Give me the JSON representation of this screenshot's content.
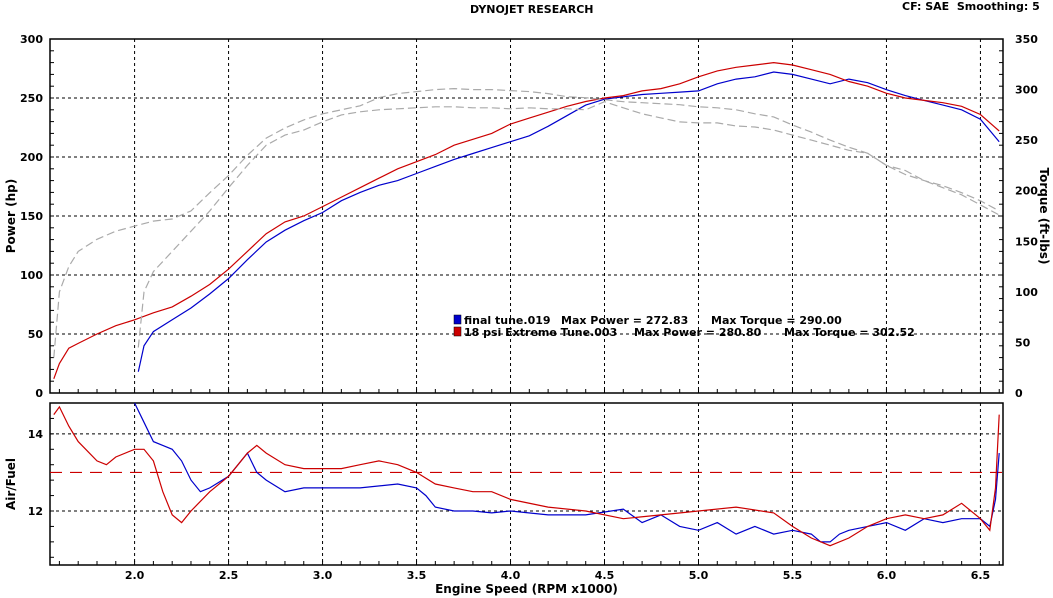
{
  "header": {
    "title": "DYNOJET RESEARCH",
    "correction": "CF: SAE  Smoothing: 5"
  },
  "chart_data": [
    {
      "type": "line",
      "panel": "power-torque",
      "xlabel": "Engine Speed (RPM x1000)",
      "ylabel_left": "Power (hp)",
      "ylabel_right": "Torque (ft-lbs)",
      "xlim": [
        1.55,
        6.62
      ],
      "ylim_left": [
        0,
        300
      ],
      "ylim_right": [
        0,
        350
      ],
      "x_ticks": [
        "2.0",
        "2.5",
        "3.0",
        "3.5",
        "4.0",
        "4.5",
        "5.0",
        "5.5",
        "6.0",
        "6.5"
      ],
      "y_ticks_left": [
        "0",
        "50",
        "100",
        "150",
        "200",
        "250",
        "300"
      ],
      "y_ticks_right": [
        "0",
        "50",
        "100",
        "150",
        "200",
        "250",
        "300",
        "350"
      ],
      "grid": true,
      "legend": [
        {
          "run": "final tune.019",
          "max_power_label": "Max Power = 272.83",
          "max_torque_label": "Max Torque = 290.00",
          "color": "#0000cc"
        },
        {
          "run": "18 psi Extreme Tune.003",
          "max_power_label": "Max Power = 280.80",
          "max_torque_label": "Max Torque = 302.52",
          "color": "#cc0000"
        }
      ],
      "series": [
        {
          "name": "final tune.019",
          "quantity": "power",
          "axis": "left",
          "color": "#0000cc",
          "x": [
            2.02,
            2.05,
            2.1,
            2.2,
            2.3,
            2.4,
            2.5,
            2.6,
            2.7,
            2.8,
            2.9,
            3.0,
            3.1,
            3.2,
            3.3,
            3.4,
            3.5,
            3.6,
            3.7,
            3.8,
            3.9,
            4.0,
            4.1,
            4.2,
            4.3,
            4.4,
            4.5,
            4.6,
            4.7,
            4.8,
            4.9,
            5.0,
            5.1,
            5.2,
            5.3,
            5.4,
            5.5,
            5.6,
            5.7,
            5.8,
            5.9,
            6.0,
            6.1,
            6.2,
            6.3,
            6.4,
            6.5,
            6.6
          ],
          "y": [
            18,
            40,
            52,
            62,
            72,
            84,
            97,
            113,
            128,
            138,
            146,
            153,
            163,
            170,
            176,
            180,
            186,
            192,
            198,
            203,
            208,
            213,
            218,
            226,
            235,
            244,
            249,
            251,
            253,
            254,
            255,
            256,
            262,
            266,
            268,
            272,
            270,
            266,
            262,
            266,
            263,
            257,
            252,
            248,
            244,
            240,
            232,
            213
          ]
        },
        {
          "name": "18 psi Extreme Tune.003",
          "quantity": "power",
          "axis": "left",
          "color": "#cc0000",
          "x": [
            1.57,
            1.6,
            1.65,
            1.7,
            1.8,
            1.9,
            2.0,
            2.1,
            2.2,
            2.3,
            2.4,
            2.5,
            2.6,
            2.7,
            2.8,
            2.9,
            3.0,
            3.1,
            3.2,
            3.3,
            3.4,
            3.5,
            3.6,
            3.7,
            3.8,
            3.9,
            4.0,
            4.1,
            4.2,
            4.3,
            4.4,
            4.5,
            4.6,
            4.7,
            4.8,
            4.9,
            5.0,
            5.1,
            5.2,
            5.3,
            5.4,
            5.5,
            5.6,
            5.7,
            5.8,
            5.9,
            6.0,
            6.1,
            6.2,
            6.3,
            6.4,
            6.5,
            6.6
          ],
          "y": [
            12,
            25,
            38,
            42,
            50,
            57,
            62,
            68,
            73,
            82,
            92,
            105,
            120,
            135,
            145,
            150,
            158,
            166,
            174,
            182,
            190,
            196,
            202,
            210,
            215,
            220,
            228,
            233,
            238,
            243,
            247,
            250,
            252,
            256,
            258,
            262,
            268,
            273,
            276,
            278,
            280,
            278,
            274,
            270,
            264,
            260,
            254,
            250,
            248,
            246,
            243,
            236,
            222
          ]
        },
        {
          "name": "final tune.019",
          "quantity": "torque",
          "axis": "right",
          "color": "#aaaaaa",
          "dashed": true,
          "x": [
            2.02,
            2.05,
            2.1,
            2.2,
            2.3,
            2.4,
            2.5,
            2.6,
            2.7,
            2.8,
            2.9,
            3.0,
            3.1,
            3.2,
            3.3,
            3.4,
            3.5,
            3.6,
            3.7,
            3.8,
            3.9,
            4.0,
            4.1,
            4.2,
            4.3,
            4.4,
            4.5,
            4.6,
            4.7,
            4.8,
            4.9,
            5.0,
            5.1,
            5.2,
            5.3,
            5.4,
            5.5,
            5.6,
            5.7,
            5.8,
            5.9,
            6.0,
            6.1,
            6.2,
            6.3,
            6.4,
            6.5,
            6.6
          ],
          "y": [
            45,
            100,
            120,
            140,
            160,
            180,
            203,
            225,
            245,
            255,
            260,
            268,
            275,
            278,
            280,
            281,
            282,
            283,
            283,
            282,
            282,
            281,
            282,
            281,
            281,
            280,
            288,
            282,
            276,
            272,
            268,
            267,
            267,
            264,
            263,
            260,
            255,
            250,
            245,
            240,
            237,
            225,
            216,
            210,
            205,
            198,
            190,
            180
          ]
        },
        {
          "name": "18 psi Extreme Tune.003",
          "quantity": "torque",
          "axis": "right",
          "color": "#aaaaaa",
          "dashed": true,
          "x": [
            1.57,
            1.6,
            1.65,
            1.7,
            1.8,
            1.9,
            2.0,
            2.1,
            2.2,
            2.3,
            2.4,
            2.5,
            2.6,
            2.7,
            2.8,
            2.9,
            3.0,
            3.1,
            3.2,
            3.3,
            3.4,
            3.5,
            3.6,
            3.7,
            3.8,
            3.9,
            4.0,
            4.1,
            4.2,
            4.3,
            4.4,
            4.5,
            4.6,
            4.7,
            4.8,
            4.9,
            5.0,
            5.1,
            5.2,
            5.3,
            5.4,
            5.5,
            5.6,
            5.7,
            5.8,
            5.9,
            6.0,
            6.1,
            6.2,
            6.3,
            6.4,
            6.5,
            6.6
          ],
          "y": [
            35,
            100,
            125,
            140,
            152,
            160,
            165,
            170,
            172,
            180,
            198,
            215,
            235,
            252,
            262,
            270,
            276,
            280,
            284,
            292,
            296,
            298,
            300,
            301,
            300,
            300,
            299,
            298,
            296,
            293,
            292,
            290,
            288,
            287,
            286,
            285,
            283,
            282,
            280,
            276,
            273,
            265,
            258,
            250,
            243,
            237,
            225,
            220,
            210,
            203,
            196,
            186,
            176
          ]
        }
      ]
    },
    {
      "type": "line",
      "panel": "air-fuel",
      "xlabel": "Engine Speed (RPM x1000)",
      "ylabel": "Air/Fuel",
      "xlim": [
        1.55,
        6.62
      ],
      "ylim": [
        10.6,
        14.8
      ],
      "x_ticks": [
        "2.0",
        "2.5",
        "3.0",
        "3.5",
        "4.0",
        "4.5",
        "5.0",
        "5.5",
        "6.0",
        "6.5"
      ],
      "y_ticks": [
        "12",
        "14"
      ],
      "reference_line": {
        "value": 13.0,
        "color": "#cc0000",
        "dashed": true
      },
      "grid": true,
      "series": [
        {
          "name": "final tune.019",
          "color": "#0000cc",
          "x": [
            2.0,
            2.05,
            2.1,
            2.15,
            2.2,
            2.25,
            2.3,
            2.35,
            2.4,
            2.5,
            2.55,
            2.6,
            2.65,
            2.7,
            2.8,
            2.9,
            3.0,
            3.2,
            3.4,
            3.5,
            3.55,
            3.6,
            3.7,
            3.8,
            3.9,
            4.0,
            4.2,
            4.4,
            4.6,
            4.7,
            4.8,
            4.9,
            5.0,
            5.1,
            5.2,
            5.3,
            5.4,
            5.5,
            5.6,
            5.65,
            5.7,
            5.75,
            5.8,
            5.9,
            6.0,
            6.1,
            6.2,
            6.3,
            6.4,
            6.5,
            6.55,
            6.58,
            6.6
          ],
          "y": [
            14.8,
            14.3,
            13.8,
            13.7,
            13.6,
            13.3,
            12.8,
            12.5,
            12.6,
            12.9,
            13.2,
            13.5,
            13.0,
            12.8,
            12.5,
            12.6,
            12.6,
            12.6,
            12.7,
            12.6,
            12.4,
            12.1,
            12.0,
            12.0,
            11.95,
            12.0,
            11.9,
            11.9,
            12.05,
            11.7,
            11.9,
            11.6,
            11.5,
            11.7,
            11.4,
            11.6,
            11.4,
            11.5,
            11.4,
            11.2,
            11.2,
            11.4,
            11.5,
            11.6,
            11.7,
            11.5,
            11.8,
            11.7,
            11.8,
            11.8,
            11.6,
            12.3,
            13.5
          ]
        },
        {
          "name": "18 psi Extreme Tune.003",
          "color": "#cc0000",
          "x": [
            1.57,
            1.6,
            1.65,
            1.7,
            1.8,
            1.85,
            1.9,
            2.0,
            2.05,
            2.1,
            2.15,
            2.2,
            2.25,
            2.3,
            2.4,
            2.5,
            2.6,
            2.65,
            2.7,
            2.8,
            2.9,
            3.0,
            3.1,
            3.2,
            3.3,
            3.4,
            3.5,
            3.6,
            3.7,
            3.8,
            3.9,
            4.0,
            4.2,
            4.4,
            4.6,
            4.8,
            5.0,
            5.2,
            5.4,
            5.5,
            5.6,
            5.7,
            5.8,
            5.9,
            6.0,
            6.1,
            6.2,
            6.3,
            6.4,
            6.5,
            6.55,
            6.58,
            6.6
          ],
          "y": [
            14.5,
            14.7,
            14.2,
            13.8,
            13.3,
            13.2,
            13.4,
            13.6,
            13.6,
            13.3,
            12.5,
            11.9,
            11.7,
            12.0,
            12.5,
            12.9,
            13.5,
            13.7,
            13.5,
            13.2,
            13.1,
            13.1,
            13.1,
            13.2,
            13.3,
            13.2,
            13.0,
            12.7,
            12.6,
            12.5,
            12.5,
            12.3,
            12.1,
            12.0,
            11.8,
            11.9,
            12.0,
            12.1,
            11.95,
            11.6,
            11.3,
            11.1,
            11.3,
            11.6,
            11.8,
            11.9,
            11.8,
            11.9,
            12.2,
            11.8,
            11.5,
            12.6,
            14.5
          ]
        }
      ]
    }
  ]
}
